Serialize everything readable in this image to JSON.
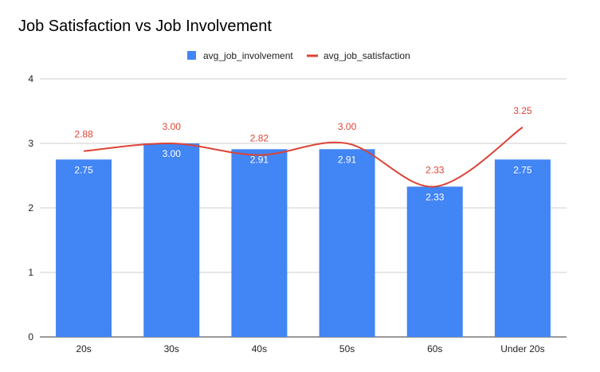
{
  "chart_data": {
    "type": "bar",
    "title": "Job Satisfaction vs Job Involvement",
    "xlabel": "",
    "ylabel": "",
    "categories": [
      "20s",
      "30s",
      "40s",
      "50s",
      "60s",
      "Under 20s"
    ],
    "ylim": [
      0,
      4
    ],
    "yticks": [
      0,
      1,
      2,
      3,
      4
    ],
    "grid": true,
    "legend_position": "top",
    "series": [
      {
        "name": "avg_job_involvement",
        "type": "bar",
        "color": "#4285f4",
        "values": [
          2.75,
          3.0,
          2.91,
          2.91,
          2.33,
          2.75
        ],
        "labels": [
          "2.75",
          "3.00",
          "2.91",
          "2.91",
          "2.33",
          "2.75"
        ]
      },
      {
        "name": "avg_job_satisfaction",
        "type": "line",
        "smooth": true,
        "color": "#db4437",
        "values": [
          2.88,
          3.0,
          2.82,
          3.0,
          2.33,
          3.25
        ],
        "labels": [
          "2.88",
          "3.00",
          "2.82",
          "3.00",
          "2.33",
          "3.25"
        ]
      }
    ]
  }
}
